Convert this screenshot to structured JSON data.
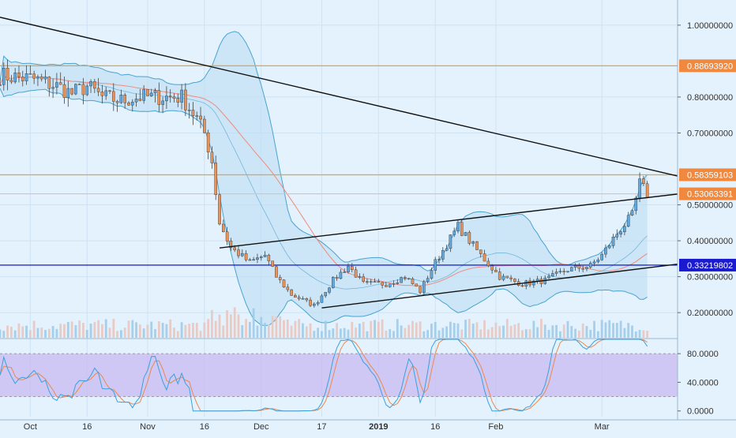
{
  "colors": {
    "background": "#e3f2fd",
    "grid": "#cfe3f3",
    "up_candle": "#5fa8e0",
    "down_candle": "#e8935b",
    "wick": "#444444",
    "bollinger_fill": "#bcdcf3",
    "bollinger_line": "#4aa3cf",
    "ma_line": "#ef8a7d",
    "trendline": "#111111",
    "resistance": "#f0a030",
    "support": "#0000cc",
    "price_label": "#f0893e",
    "volume_up": "#9ecbe9",
    "volume_down": "#e9c7c0",
    "stoch_band": "#c8b8f0",
    "stoch_k": "#3aa0e0",
    "stoch_d": "#e98a50"
  },
  "chart_data": [
    {
      "type": "candlestick",
      "y_axis_ticks": [
        "1.00000000",
        "0.80000000",
        "0.70000000",
        "0.50000000",
        "0.40000000",
        "0.30000000",
        "0.20000000"
      ],
      "y_axis_tick_values": [
        1.0,
        0.8,
        0.7,
        0.5,
        0.4,
        0.3,
        0.2
      ],
      "ylim": [
        0.13,
        1.07
      ],
      "x_axis_ticks": [
        "Oct",
        "16",
        "Nov",
        "16",
        "Dec",
        "17",
        "2019",
        "16",
        "Feb",
        "Mar"
      ],
      "x_axis_tick_dates": [
        "2018-10-01",
        "2018-10-16",
        "2018-11-01",
        "2018-11-16",
        "2018-12-01",
        "2018-12-17",
        "2019-01-01",
        "2019-01-16",
        "2019-02-01",
        "2019-03-01"
      ],
      "xlim": [
        "2018-09-23",
        "2019-03-21"
      ],
      "price_labels": [
        {
          "text": "0.88693920",
          "value": 0.8869392,
          "color": "#f0893e"
        },
        {
          "text": "0.58359103",
          "value": 0.58359103,
          "color": "#f0893e"
        },
        {
          "text": "0.53063391",
          "value": 0.53063391,
          "color": "#f0893e"
        },
        {
          "text": "0.33219802",
          "value": 0.33219802,
          "color": "#1a1ad0"
        }
      ],
      "horizontal_lines": [
        {
          "value": 0.8869392,
          "color": "#f0a030"
        },
        {
          "value": 0.58359103,
          "color": "#f0a030"
        },
        {
          "value": 0.53063391,
          "color": "#f3b8a8"
        },
        {
          "value": 0.33219802,
          "color": "#0000cc"
        }
      ],
      "trendlines": [
        {
          "from": [
            "2018-09-23",
            1.022
          ],
          "to": [
            "2019-03-21",
            0.58
          ]
        },
        {
          "from": [
            "2018-11-20",
            0.38
          ],
          "to": [
            "2019-03-21",
            0.53
          ]
        },
        {
          "from": [
            "2018-12-17",
            0.213
          ],
          "to": [
            "2019-03-21",
            0.335
          ]
        }
      ],
      "keypoints": [
        [
          "2018-09-23",
          0.86
        ],
        [
          "2018-10-02",
          0.85
        ],
        [
          "2018-10-08",
          0.83
        ],
        [
          "2018-10-12",
          0.81
        ],
        [
          "2018-10-16",
          0.83
        ],
        [
          "2018-10-20",
          0.8
        ],
        [
          "2018-10-25",
          0.79
        ],
        [
          "2018-10-30",
          0.8
        ],
        [
          "2018-11-05",
          0.8
        ],
        [
          "2018-11-10",
          0.8
        ],
        [
          "2018-11-14",
          0.74
        ],
        [
          "2018-11-16",
          0.7
        ],
        [
          "2018-11-18",
          0.62
        ],
        [
          "2018-11-20",
          0.45
        ],
        [
          "2018-11-23",
          0.38
        ],
        [
          "2018-11-28",
          0.34
        ],
        [
          "2018-12-02",
          0.36
        ],
        [
          "2018-12-05",
          0.3
        ],
        [
          "2018-12-09",
          0.25
        ],
        [
          "2018-12-15",
          0.22
        ],
        [
          "2018-12-20",
          0.29
        ],
        [
          "2018-12-24",
          0.33
        ],
        [
          "2018-12-28",
          0.28
        ],
        [
          "2019-01-03",
          0.28
        ],
        [
          "2019-01-08",
          0.3
        ],
        [
          "2019-01-12",
          0.26
        ],
        [
          "2019-01-16",
          0.34
        ],
        [
          "2019-01-22",
          0.44
        ],
        [
          "2019-01-28",
          0.36
        ],
        [
          "2019-02-02",
          0.3
        ],
        [
          "2019-02-08",
          0.28
        ],
        [
          "2019-02-14",
          0.29
        ],
        [
          "2019-02-20",
          0.32
        ],
        [
          "2019-02-26",
          0.33
        ],
        [
          "2019-03-01",
          0.36
        ],
        [
          "2019-03-05",
          0.42
        ],
        [
          "2019-03-09",
          0.47
        ],
        [
          "2019-03-11",
          0.56
        ],
        [
          "2019-03-13",
          0.53
        ]
      ],
      "series": [
        {
          "style": "bollinger_bands"
        },
        {
          "style": "moving_average"
        },
        {
          "style": "volume"
        }
      ]
    },
    {
      "type": "line",
      "y_axis_ticks": [
        "80.0000",
        "40.0000",
        "0.0000"
      ],
      "y_axis_tick_values": [
        80,
        40,
        0
      ],
      "ylim": [
        -8,
        100
      ],
      "band": [
        20,
        80
      ],
      "series": [
        {
          "style": "stochastic_k"
        },
        {
          "style": "stochastic_d"
        }
      ]
    }
  ]
}
